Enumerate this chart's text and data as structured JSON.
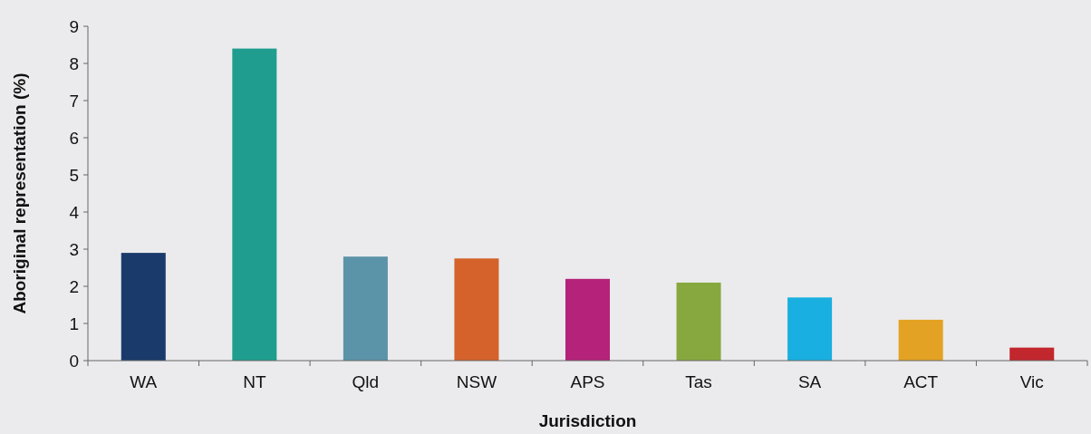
{
  "chart_data": {
    "type": "bar",
    "xlabel": "Jurisdiction",
    "ylabel": "Aboriginal representation (%)",
    "categories": [
      "WA",
      "NT",
      "Qld",
      "NSW",
      "APS",
      "Tas",
      "SA",
      "ACT",
      "Vic"
    ],
    "values": [
      2.9,
      8.4,
      2.8,
      2.75,
      2.2,
      2.1,
      1.7,
      1.1,
      0.35
    ],
    "colors": [
      "#1a3a6b",
      "#1f9e8f",
      "#5b93a8",
      "#d4622a",
      "#b52279",
      "#86a83e",
      "#19afe0",
      "#e4a224",
      "#c1272d"
    ],
    "ylim": [
      0,
      9
    ],
    "yticks": [
      0,
      1,
      2,
      3,
      4,
      5,
      6,
      7,
      8,
      9
    ],
    "grid": false
  }
}
